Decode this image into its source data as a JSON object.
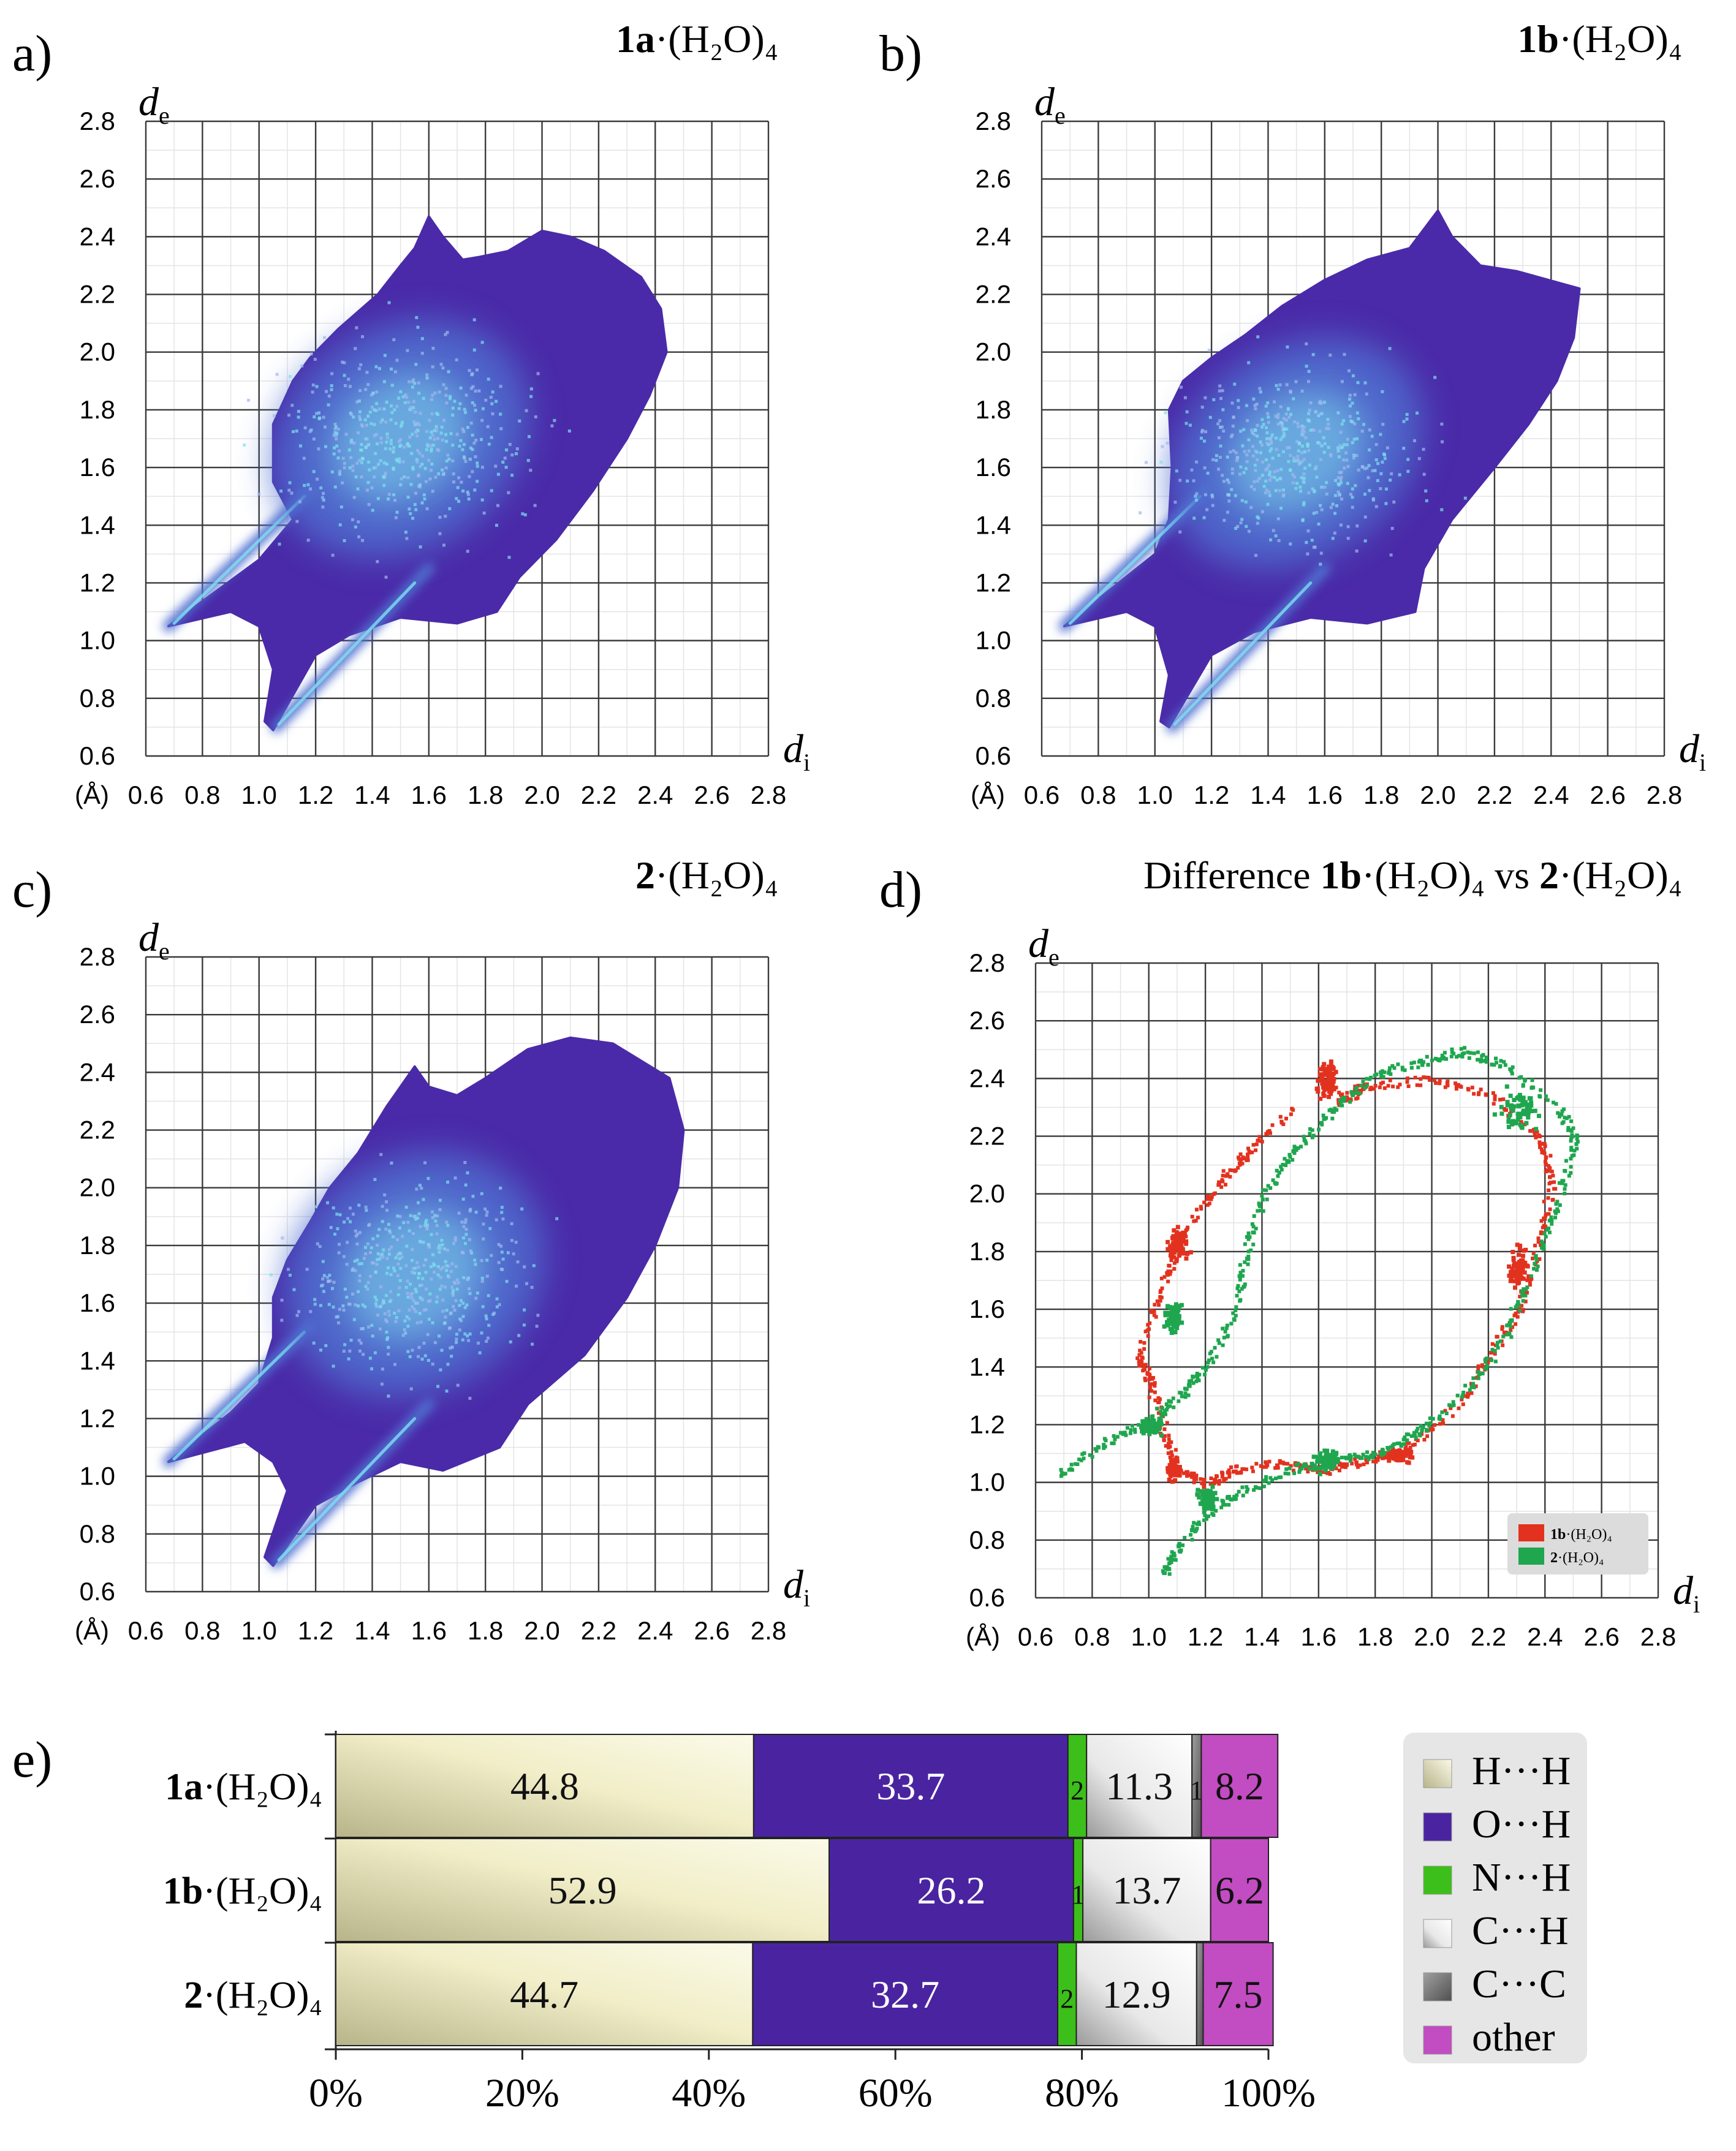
{
  "colors": {
    "fp_dark": "#4a2aa8",
    "fp_mid": "#4f6fd0",
    "fp_light": "#7fe0f0",
    "diff_red": "#e2321f",
    "diff_green": "#1fa64f",
    "hh": "#f3f0c8",
    "oh": "#4a24a0",
    "nh": "#3cbf1a",
    "ch": "#f2f2f2",
    "cc": "#808080",
    "other": "#c24cc2"
  },
  "chart_data": [
    {
      "id": "a",
      "panel_label": "a)",
      "type": "heatmap",
      "title_bold": "1a",
      "title_rest": "·(H₂O)₄",
      "ylabel": "de",
      "ylabel_main": "d",
      "ylabel_sub": "e",
      "xlabel": "di",
      "xlabel_main": "d",
      "xlabel_sub": "i",
      "unit_label": "(Å)",
      "xlim": [
        0.6,
        2.8
      ],
      "ylim": [
        0.6,
        2.8
      ],
      "ticks": [
        "0.6",
        "0.8",
        "1.0",
        "1.2",
        "1.4",
        "1.6",
        "1.8",
        "2.0",
        "2.2",
        "2.4",
        "2.6",
        "2.8"
      ],
      "blob": [
        [
          0.68,
          1.05
        ],
        [
          1.0,
          1.28
        ],
        [
          1.12,
          1.42
        ],
        [
          1.05,
          1.55
        ],
        [
          1.05,
          1.75
        ],
        [
          1.12,
          1.9
        ],
        [
          1.18,
          1.98
        ],
        [
          1.28,
          2.08
        ],
        [
          1.42,
          2.2
        ],
        [
          1.5,
          2.3
        ],
        [
          1.55,
          2.36
        ],
        [
          1.6,
          2.47
        ],
        [
          1.65,
          2.4
        ],
        [
          1.72,
          2.32
        ],
        [
          1.78,
          2.33
        ],
        [
          1.88,
          2.35
        ],
        [
          2.0,
          2.42
        ],
        [
          2.1,
          2.4
        ],
        [
          2.22,
          2.35
        ],
        [
          2.35,
          2.26
        ],
        [
          2.42,
          2.15
        ],
        [
          2.44,
          2.0
        ],
        [
          2.38,
          1.85
        ],
        [
          2.3,
          1.7
        ],
        [
          2.18,
          1.52
        ],
        [
          2.05,
          1.35
        ],
        [
          1.92,
          1.22
        ],
        [
          1.84,
          1.1
        ],
        [
          1.7,
          1.06
        ],
        [
          1.5,
          1.08
        ],
        [
          1.32,
          1.02
        ],
        [
          1.2,
          0.95
        ],
        [
          1.05,
          0.69
        ],
        [
          1.02,
          0.72
        ],
        [
          1.05,
          0.9
        ],
        [
          1.0,
          1.05
        ],
        [
          0.9,
          1.1
        ]
      ],
      "core": [
        1.5,
        1.7,
        0.48,
        0.38,
        -35
      ]
    },
    {
      "id": "b",
      "panel_label": "b)",
      "type": "heatmap",
      "title_bold": "1b",
      "title_rest": "·(H₂O)₄",
      "ylabel": "de",
      "ylabel_main": "d",
      "ylabel_sub": "e",
      "xlabel": "di",
      "xlabel_main": "d",
      "xlabel_sub": "i",
      "unit_label": "(Å)",
      "xlim": [
        0.6,
        2.8
      ],
      "ylim": [
        0.6,
        2.8
      ],
      "ticks": [
        "0.6",
        "0.8",
        "1.0",
        "1.2",
        "1.4",
        "1.6",
        "1.8",
        "2.0",
        "2.2",
        "2.4",
        "2.6",
        "2.8"
      ],
      "blob": [
        [
          0.68,
          1.05
        ],
        [
          1.0,
          1.3
        ],
        [
          1.05,
          1.42
        ],
        [
          1.06,
          1.6
        ],
        [
          1.05,
          1.8
        ],
        [
          1.1,
          1.9
        ],
        [
          1.2,
          1.98
        ],
        [
          1.32,
          2.06
        ],
        [
          1.45,
          2.16
        ],
        [
          1.6,
          2.25
        ],
        [
          1.75,
          2.32
        ],
        [
          1.9,
          2.36
        ],
        [
          2.0,
          2.49
        ],
        [
          2.05,
          2.4
        ],
        [
          2.15,
          2.3
        ],
        [
          2.28,
          2.28
        ],
        [
          2.5,
          2.22
        ],
        [
          2.48,
          2.05
        ],
        [
          2.42,
          1.9
        ],
        [
          2.32,
          1.75
        ],
        [
          2.2,
          1.6
        ],
        [
          2.05,
          1.42
        ],
        [
          1.95,
          1.25
        ],
        [
          1.92,
          1.1
        ],
        [
          1.75,
          1.06
        ],
        [
          1.55,
          1.08
        ],
        [
          1.35,
          1.03
        ],
        [
          1.2,
          0.95
        ],
        [
          1.05,
          0.7
        ],
        [
          1.02,
          0.72
        ],
        [
          1.05,
          0.88
        ],
        [
          1.0,
          1.05
        ],
        [
          0.9,
          1.1
        ]
      ],
      "core": [
        1.5,
        1.65,
        0.48,
        0.36,
        -35
      ]
    },
    {
      "id": "c",
      "panel_label": "c)",
      "type": "heatmap",
      "title_bold": "2",
      "title_rest": "·(H₂O)₄",
      "ylabel": "de",
      "ylabel_main": "d",
      "ylabel_sub": "e",
      "xlabel": "di",
      "xlabel_main": "d",
      "xlabel_sub": "i",
      "unit_label": "(Å)",
      "xlim": [
        0.6,
        2.8
      ],
      "ylim": [
        0.6,
        2.8
      ],
      "ticks": [
        "0.6",
        "0.8",
        "1.0",
        "1.2",
        "1.4",
        "1.6",
        "1.8",
        "2.0",
        "2.2",
        "2.4",
        "2.6",
        "2.8"
      ],
      "blob": [
        [
          0.68,
          1.05
        ],
        [
          0.9,
          1.22
        ],
        [
          1.0,
          1.32
        ],
        [
          1.05,
          1.48
        ],
        [
          1.05,
          1.62
        ],
        [
          1.1,
          1.75
        ],
        [
          1.18,
          1.88
        ],
        [
          1.25,
          2.0
        ],
        [
          1.35,
          2.12
        ],
        [
          1.45,
          2.28
        ],
        [
          1.55,
          2.42
        ],
        [
          1.6,
          2.35
        ],
        [
          1.7,
          2.32
        ],
        [
          1.8,
          2.38
        ],
        [
          1.95,
          2.48
        ],
        [
          2.1,
          2.52
        ],
        [
          2.25,
          2.5
        ],
        [
          2.45,
          2.38
        ],
        [
          2.5,
          2.2
        ],
        [
          2.48,
          2.0
        ],
        [
          2.4,
          1.8
        ],
        [
          2.3,
          1.62
        ],
        [
          2.15,
          1.42
        ],
        [
          1.95,
          1.25
        ],
        [
          1.85,
          1.1
        ],
        [
          1.65,
          1.02
        ],
        [
          1.5,
          1.05
        ],
        [
          1.35,
          0.98
        ],
        [
          1.2,
          0.9
        ],
        [
          1.05,
          0.69
        ],
        [
          1.02,
          0.72
        ],
        [
          1.1,
          0.95
        ],
        [
          1.05,
          1.05
        ],
        [
          0.95,
          1.12
        ]
      ],
      "core": [
        1.55,
        1.7,
        0.48,
        0.4,
        -35
      ]
    },
    {
      "id": "d",
      "panel_label": "d)",
      "type": "scatter",
      "title_prefix": "Difference ",
      "title_bold_1": "1b",
      "title_mid": "·(H₂O)₄ vs ",
      "title_bold_2": "2",
      "title_end": "·(H₂O)₄",
      "ylabel": "de",
      "ylabel_main": "d",
      "ylabel_sub": "e",
      "xlabel": "di",
      "xlabel_main": "d",
      "xlabel_sub": "i",
      "unit_label": "(Å)",
      "xlim": [
        0.6,
        2.8
      ],
      "ylim": [
        0.6,
        2.8
      ],
      "ticks": [
        "0.6",
        "0.8",
        "1.0",
        "1.2",
        "1.4",
        "1.6",
        "1.8",
        "2.0",
        "2.2",
        "2.4",
        "2.6",
        "2.8"
      ],
      "legend_position": "bottom-right",
      "series": [
        {
          "name": "1b·(H₂O)₄",
          "name_bold": "1b",
          "name_rest": "·(H₂O)₄",
          "color": "#e2321f",
          "ring": [
            [
              1.62,
              2.45
            ],
            [
              1.68,
              2.32
            ],
            [
              1.75,
              2.38
            ],
            [
              2.0,
              2.4
            ],
            [
              2.2,
              2.35
            ],
            [
              2.38,
              2.2
            ],
            [
              2.42,
              2.05
            ],
            [
              2.38,
              1.85
            ],
            [
              2.3,
              1.6
            ],
            [
              2.2,
              1.45
            ],
            [
              2.1,
              1.28
            ],
            [
              1.9,
              1.12
            ],
            [
              1.75,
              1.08
            ],
            [
              1.62,
              1.05
            ],
            [
              1.45,
              1.07
            ],
            [
              1.3,
              1.05
            ],
            [
              1.2,
              1.0
            ],
            [
              1.1,
              1.05
            ],
            [
              1.06,
              1.15
            ],
            [
              1.0,
              1.35
            ],
            [
              0.96,
              1.45
            ],
            [
              1.05,
              1.7
            ],
            [
              1.1,
              1.85
            ],
            [
              1.25,
              2.05
            ],
            [
              1.35,
              2.15
            ],
            [
              1.5,
              2.3
            ]
          ],
          "clusters": [
            [
              1.1,
              1.83,
              0.06,
              0.1
            ],
            [
              1.62,
              2.4,
              0.05,
              0.1
            ],
            [
              1.88,
              1.1,
              0.1,
              0.04
            ],
            [
              1.08,
              1.05,
              0.04,
              0.06
            ],
            [
              2.3,
              1.75,
              0.06,
              0.14
            ]
          ]
        },
        {
          "name": "2·(H₂O)₄",
          "name_bold": "2",
          "name_rest": "·(H₂O)₄",
          "color": "#1fa64f",
          "ring": [
            [
              0.68,
              1.03
            ],
            [
              0.85,
              1.15
            ],
            [
              1.0,
              1.22
            ],
            [
              1.1,
              1.3
            ],
            [
              1.2,
              1.4
            ],
            [
              1.3,
              1.6
            ],
            [
              1.35,
              1.85
            ],
            [
              1.4,
              2.0
            ],
            [
              1.5,
              2.15
            ],
            [
              1.65,
              2.3
            ],
            [
              1.8,
              2.42
            ],
            [
              1.95,
              2.46
            ],
            [
              2.1,
              2.5
            ],
            [
              2.25,
              2.45
            ],
            [
              2.45,
              2.3
            ],
            [
              2.5,
              2.2
            ],
            [
              2.45,
              2.0
            ],
            [
              2.35,
              1.75
            ],
            [
              2.25,
              1.5
            ],
            [
              2.1,
              1.3
            ],
            [
              1.95,
              1.18
            ],
            [
              1.8,
              1.1
            ],
            [
              1.65,
              1.08
            ],
            [
              1.5,
              1.05
            ],
            [
              1.3,
              0.96
            ],
            [
              1.2,
              0.9
            ],
            [
              1.1,
              0.78
            ],
            [
              1.05,
              0.68
            ]
          ],
          "clusters": [
            [
              1.08,
              1.58,
              0.05,
              0.08
            ],
            [
              1.62,
              1.08,
              0.08,
              0.06
            ],
            [
              1.0,
              1.2,
              0.07,
              0.05
            ],
            [
              1.2,
              0.95,
              0.06,
              0.06
            ],
            [
              2.3,
              2.3,
              0.12,
              0.12
            ]
          ]
        }
      ]
    },
    {
      "id": "e",
      "panel_label": "e)",
      "type": "bar",
      "orientation": "horizontal-stacked",
      "categories": [
        {
          "bold": "1a",
          "rest": "·(H₂O)₄"
        },
        {
          "bold": "1b",
          "rest": "·(H₂O)₄"
        },
        {
          "bold": "2",
          "rest": "·(H₂O)₄"
        }
      ],
      "series": [
        {
          "name": "H···H",
          "values": [
            44.8,
            52.9,
            44.7
          ],
          "value_labels": [
            "44.8",
            "52.9",
            "44.7"
          ],
          "color": "#f3f0c8",
          "label_color": "#111111"
        },
        {
          "name": "O···H",
          "values": [
            33.7,
            26.2,
            32.7
          ],
          "value_labels": [
            "33.7",
            "26.2",
            "32.7"
          ],
          "color": "#4a24a0",
          "label_color": "#ffffff"
        },
        {
          "name": "N···H",
          "values": [
            2.0,
            1.0,
            2.0
          ],
          "value_labels": [
            "2",
            "1",
            "2"
          ],
          "color": "#3cbf1a",
          "label_color": "#111111"
        },
        {
          "name": "C···H",
          "values": [
            11.3,
            13.7,
            12.9
          ],
          "value_labels": [
            "11.3",
            "13.7",
            "12.9"
          ],
          "color": "#f2f2f2",
          "label_color": "#111111"
        },
        {
          "name": "C···C",
          "values": [
            1.0,
            0.0,
            0.7
          ],
          "value_labels": [
            "1",
            "",
            ""
          ],
          "color": "#808080",
          "label_color": "#111111"
        },
        {
          "name": "other",
          "values": [
            8.2,
            6.2,
            7.5
          ],
          "value_labels": [
            "8.2",
            "6.2",
            "7.5"
          ],
          "color": "#c24cc2",
          "label_color": "#111111"
        }
      ],
      "xticks": [
        "0%",
        "20%",
        "40%",
        "60%",
        "80%",
        "100%"
      ],
      "xlim": [
        0,
        100
      ],
      "legend_position": "right"
    }
  ]
}
